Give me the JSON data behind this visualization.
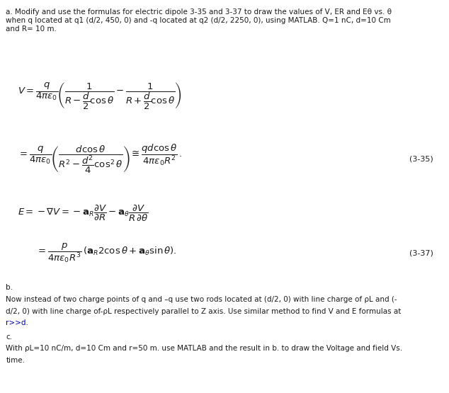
{
  "background_color": "#ffffff",
  "fig_width": 6.34,
  "fig_height": 5.55,
  "dpi": 100,
  "text_color": "#1a1a1a",
  "blue_color": "#0000bb",
  "part_a_line1": "a. Modify and use the formulas for electric dipole 3-35 and 3-37 to draw the values of V, ER and Eθ vs. θ",
  "part_a_line2": "when q located at q1 (d/2, 450, 0) and -q located at q2 (d/2, 2250, 0), using MATLAB. Q=1 nC, d=10 Cm",
  "part_a_line3": "and R= 10 m.",
  "eq_335_label": "(3-35)",
  "eq_337_label": "(3-37)",
  "part_b_label": "b.",
  "part_b_line1": "Now instead of two charge points of q and –q use two rods located at (d/2, 0) with line charge of ρL and (-",
  "part_b_line2": "d/2, 0) with line charge of-ρL respectively parallel to Z axis. Use similar method to find V and E formulas at",
  "part_b_line3": "r>>d.",
  "part_c_label": "c.",
  "part_c_line1": "With ρL=10 nC/m, d=10 Cm and r=50 m. use MATLAB and the result in b. to draw the Voltage and field Vs.",
  "part_c_line2": "time."
}
